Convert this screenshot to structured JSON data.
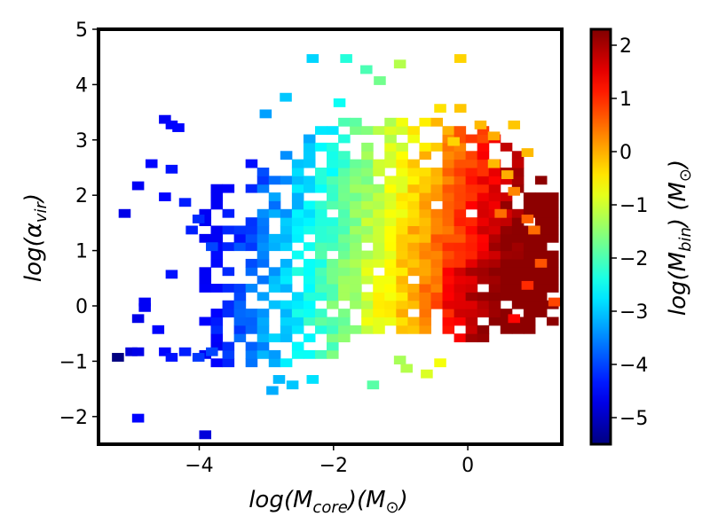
{
  "chart_data": {
    "type": "heatmap",
    "title": "",
    "xlabel": {
      "main": "log(M",
      "sub": "core",
      "end": ")(M",
      "sub2": "⊙",
      "close": ")"
    },
    "ylabel": {
      "main": "log(α",
      "sub": "vir",
      "close": ")"
    },
    "colorbar_label": {
      "main": "log(M",
      "sub": "bin",
      "end": ") (M",
      "sub2": "⊙",
      "close": ")"
    },
    "xlim": [
      -5.5,
      1.4
    ],
    "ylim": [
      -2.5,
      5.0
    ],
    "xticks": [
      -4,
      -2,
      0
    ],
    "xtick_labels": [
      "−4",
      "−2",
      "0"
    ],
    "yticks": [
      -2,
      -1,
      0,
      1,
      2,
      3,
      4,
      5
    ],
    "ytick_labels": [
      "−2",
      "−1",
      "0",
      "1",
      "2",
      "3",
      "4",
      "5"
    ],
    "color_range": [
      -5.5,
      2.3
    ],
    "colorbar_ticks": [
      -5,
      -4,
      -3,
      -2,
      -1,
      0,
      1,
      2
    ],
    "colorbar_tick_labels": [
      "−5",
      "−4",
      "−3",
      "−2",
      "−1",
      "0",
      "1",
      "2"
    ],
    "colormap": "jet",
    "bin_size": {
      "x": 0.1725,
      "y": 0.15
    },
    "cells": [
      [
        -5.3,
        -1.0,
        -5.5
      ],
      [
        -5.0,
        -2.1,
        -4.5
      ],
      [
        -4.0,
        -2.4,
        -4.8
      ],
      [
        -5.2,
        1.6,
        -4.7
      ],
      [
        -5.0,
        2.1,
        -4.6
      ],
      [
        -4.8,
        2.5,
        -4.5
      ],
      [
        -4.6,
        3.3,
        -4.6
      ],
      [
        -4.5,
        3.2,
        -4.5
      ],
      [
        -4.4,
        3.15,
        -4.5
      ],
      [
        -4.6,
        1.9,
        -4.5
      ],
      [
        -4.5,
        2.4,
        -4.4
      ],
      [
        -4.3,
        1.8,
        -4.3
      ],
      [
        -4.2,
        1.3,
        -4.3
      ],
      [
        -4.1,
        1.5,
        -4.2
      ],
      [
        -3.9,
        1.0,
        -4.0
      ],
      [
        -4.5,
        0.5,
        -4.4
      ],
      [
        -4.9,
        0.0,
        -4.6
      ],
      [
        -4.9,
        -0.1,
        -4.6
      ],
      [
        -5.0,
        -0.3,
        -4.7
      ],
      [
        -5.1,
        -0.9,
        -4.8
      ],
      [
        -5.0,
        -0.9,
        -4.7
      ],
      [
        -4.7,
        -0.5,
        -4.5
      ],
      [
        -4.6,
        -0.9,
        -4.5
      ],
      [
        -4.5,
        -1.0,
        -4.4
      ],
      [
        -4.3,
        -0.9,
        -4.3
      ],
      [
        -4.1,
        -1.0,
        -4.1
      ],
      [
        -3.9,
        -0.9,
        -4.0
      ],
      [
        -2.1,
        4.9,
        -2.7
      ],
      [
        -1.6,
        4.2,
        -2.0
      ],
      [
        -1.9,
        4.4,
        -2.3
      ],
      [
        -1.4,
        4.0,
        -1.7
      ],
      [
        -2.4,
        4.4,
        -2.9
      ],
      [
        -2.8,
        3.7,
        -3.0
      ],
      [
        -3.1,
        3.4,
        -3.3
      ],
      [
        -2.0,
        3.6,
        -2.5
      ],
      [
        -1.1,
        4.3,
        -1.2
      ],
      [
        -0.2,
        4.4,
        -0.3
      ],
      [
        -0.2,
        3.5,
        -0.2
      ],
      [
        0.1,
        3.2,
        -0.1
      ],
      [
        -2.9,
        -1.4,
        -3.1
      ],
      [
        -3.0,
        -1.6,
        -3.2
      ],
      [
        -2.7,
        -1.5,
        -3.0
      ],
      [
        -2.4,
        -1.4,
        -2.8
      ],
      [
        -1.5,
        -1.5,
        -1.9
      ],
      [
        -1.0,
        -1.2,
        -1.2
      ],
      [
        -1.1,
        -1.05,
        -1.3
      ],
      [
        -0.7,
        -1.3,
        -0.9
      ],
      [
        -0.5,
        -1.1,
        -0.7
      ],
      [
        0.6,
        -0.3,
        1.3
      ],
      [
        0.8,
        0.3,
        1.0
      ],
      [
        1.0,
        0.7,
        0.7
      ],
      [
        1.2,
        0.0,
        0.8
      ],
      [
        1.3,
        0.0,
        0.7
      ],
      [
        0.4,
        1.6,
        0.5
      ],
      [
        0.6,
        2.0,
        0.3
      ],
      [
        0.8,
        1.5,
        0.6
      ],
      [
        0.9,
        1.3,
        0.5
      ],
      [
        0.3,
        2.5,
        -0.1
      ],
      [
        0.5,
        2.3,
        0.0
      ],
      [
        -0.3,
        2.9,
        -0.3
      ],
      [
        -0.5,
        3.5,
        -0.4
      ],
      [
        0.3,
        3.0,
        0.0
      ],
      [
        0.6,
        3.2,
        -0.2
      ],
      [
        0.8,
        2.7,
        -0.1
      ]
    ]
  }
}
